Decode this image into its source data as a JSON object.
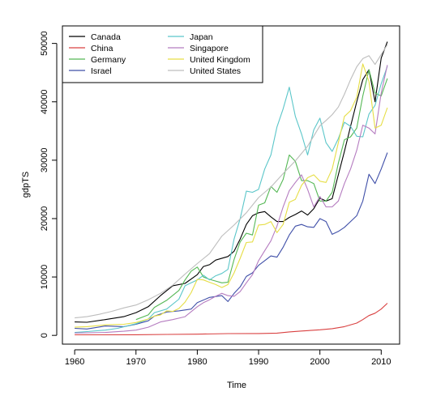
{
  "chart_data": {
    "type": "line",
    "title": "",
    "xlabel": "Time",
    "ylabel": "gdpTS",
    "xlim": [
      1958,
      2013
    ],
    "ylim": [
      -1500,
      53000
    ],
    "x_ticks": [
      1960,
      1970,
      1980,
      1990,
      2000,
      2010
    ],
    "y_ticks": [
      0,
      10000,
      20000,
      30000,
      40000,
      50000
    ],
    "grid": false,
    "legend_position": "top-left",
    "series": [
      {
        "name": "Canada",
        "color": "#000000",
        "points": [
          [
            1960,
            2300
          ],
          [
            1962,
            2250
          ],
          [
            1965,
            2700
          ],
          [
            1968,
            3200
          ],
          [
            1970,
            3900
          ],
          [
            1972,
            4900
          ],
          [
            1974,
            6800
          ],
          [
            1976,
            8500
          ],
          [
            1978,
            8900
          ],
          [
            1980,
            10400
          ],
          [
            1981,
            11800
          ],
          [
            1982,
            12100
          ],
          [
            1983,
            12900
          ],
          [
            1985,
            13500
          ],
          [
            1986,
            14400
          ],
          [
            1987,
            16500
          ],
          [
            1988,
            19000
          ],
          [
            1989,
            20500
          ],
          [
            1990,
            21000
          ],
          [
            1991,
            21200
          ],
          [
            1992,
            20300
          ],
          [
            1993,
            19500
          ],
          [
            1994,
            19500
          ],
          [
            1995,
            20200
          ],
          [
            1996,
            20700
          ],
          [
            1997,
            21300
          ],
          [
            1998,
            20600
          ],
          [
            1999,
            21700
          ],
          [
            2000,
            23500
          ],
          [
            2001,
            23000
          ],
          [
            2002,
            23400
          ],
          [
            2003,
            27500
          ],
          [
            2004,
            31500
          ],
          [
            2005,
            35800
          ],
          [
            2006,
            40000
          ],
          [
            2007,
            43800
          ],
          [
            2008,
            45500
          ],
          [
            2009,
            40000
          ],
          [
            2010,
            47500
          ],
          [
            2011,
            50300
          ]
        ]
      },
      {
        "name": "China",
        "color": "#d94040",
        "points": [
          [
            1960,
            100
          ],
          [
            1965,
            100
          ],
          [
            1970,
            110
          ],
          [
            1975,
            170
          ],
          [
            1980,
            200
          ],
          [
            1985,
            300
          ],
          [
            1990,
            320
          ],
          [
            1993,
            380
          ],
          [
            1995,
            600
          ],
          [
            1997,
            750
          ],
          [
            2000,
            950
          ],
          [
            2002,
            1150
          ],
          [
            2004,
            1500
          ],
          [
            2006,
            2100
          ],
          [
            2007,
            2700
          ],
          [
            2008,
            3400
          ],
          [
            2009,
            3800
          ],
          [
            2010,
            4500
          ],
          [
            2011,
            5500
          ]
        ]
      },
      {
        "name": "Germany",
        "color": "#55b855",
        "points": [
          [
            1970,
            2700
          ],
          [
            1972,
            3500
          ],
          [
            1973,
            4800
          ],
          [
            1975,
            6000
          ],
          [
            1977,
            7700
          ],
          [
            1978,
            9500
          ],
          [
            1979,
            11000
          ],
          [
            1980,
            11700
          ],
          [
            1981,
            10000
          ],
          [
            1982,
            9600
          ],
          [
            1983,
            9300
          ],
          [
            1984,
            9000
          ],
          [
            1985,
            9100
          ],
          [
            1986,
            13000
          ],
          [
            1987,
            16000
          ],
          [
            1988,
            17500
          ],
          [
            1989,
            17200
          ],
          [
            1990,
            22300
          ],
          [
            1991,
            22700
          ],
          [
            1992,
            25500
          ],
          [
            1993,
            24500
          ],
          [
            1994,
            26700
          ],
          [
            1995,
            30900
          ],
          [
            1996,
            29800
          ],
          [
            1997,
            26500
          ],
          [
            1998,
            26500
          ],
          [
            1999,
            26000
          ],
          [
            2000,
            23000
          ],
          [
            2001,
            23000
          ],
          [
            2002,
            24500
          ],
          [
            2003,
            29500
          ],
          [
            2004,
            33500
          ],
          [
            2005,
            34000
          ],
          [
            2006,
            35500
          ],
          [
            2007,
            41000
          ],
          [
            2008,
            45500
          ],
          [
            2009,
            41500
          ],
          [
            2010,
            41000
          ],
          [
            2011,
            44000
          ]
        ]
      },
      {
        "name": "Israel",
        "color": "#3f4fa8",
        "points": [
          [
            1960,
            1200
          ],
          [
            1962,
            1100
          ],
          [
            1965,
            1600
          ],
          [
            1968,
            1500
          ],
          [
            1970,
            1900
          ],
          [
            1972,
            2500
          ],
          [
            1973,
            3300
          ],
          [
            1975,
            4000
          ],
          [
            1977,
            4200
          ],
          [
            1979,
            4500
          ],
          [
            1980,
            5600
          ],
          [
            1982,
            6500
          ],
          [
            1984,
            6800
          ],
          [
            1985,
            5800
          ],
          [
            1986,
            7200
          ],
          [
            1987,
            8300
          ],
          [
            1988,
            10100
          ],
          [
            1989,
            10700
          ],
          [
            1990,
            12000
          ],
          [
            1991,
            12800
          ],
          [
            1992,
            13600
          ],
          [
            1993,
            13400
          ],
          [
            1994,
            15100
          ],
          [
            1995,
            17200
          ],
          [
            1996,
            18700
          ],
          [
            1997,
            19000
          ],
          [
            1998,
            18600
          ],
          [
            1999,
            18500
          ],
          [
            2000,
            20000
          ],
          [
            2001,
            19500
          ],
          [
            2002,
            17300
          ],
          [
            2003,
            17800
          ],
          [
            2004,
            18500
          ],
          [
            2005,
            19500
          ],
          [
            2006,
            20500
          ],
          [
            2007,
            23000
          ],
          [
            2008,
            27600
          ],
          [
            2009,
            26000
          ],
          [
            2010,
            28500
          ],
          [
            2011,
            31300
          ]
        ]
      },
      {
        "name": "Japan",
        "color": "#5bc6c9",
        "points": [
          [
            1960,
            500
          ],
          [
            1962,
            650
          ],
          [
            1965,
            900
          ],
          [
            1967,
            1200
          ],
          [
            1970,
            2000
          ],
          [
            1972,
            2800
          ],
          [
            1973,
            3900
          ],
          [
            1975,
            4500
          ],
          [
            1977,
            6200
          ],
          [
            1978,
            8500
          ],
          [
            1979,
            9000
          ],
          [
            1980,
            9500
          ],
          [
            1981,
            10300
          ],
          [
            1982,
            9500
          ],
          [
            1983,
            10200
          ],
          [
            1984,
            10600
          ],
          [
            1985,
            11300
          ],
          [
            1986,
            16500
          ],
          [
            1987,
            20000
          ],
          [
            1988,
            24700
          ],
          [
            1989,
            24500
          ],
          [
            1990,
            25000
          ],
          [
            1991,
            28500
          ],
          [
            1992,
            30900
          ],
          [
            1993,
            35700
          ],
          [
            1994,
            38800
          ],
          [
            1995,
            42500
          ],
          [
            1996,
            37500
          ],
          [
            1997,
            34500
          ],
          [
            1998,
            30900
          ],
          [
            1999,
            35200
          ],
          [
            2000,
            37200
          ],
          [
            2001,
            33000
          ],
          [
            2002,
            31500
          ],
          [
            2003,
            33700
          ],
          [
            2004,
            36500
          ],
          [
            2005,
            35800
          ],
          [
            2006,
            34100
          ],
          [
            2007,
            34000
          ],
          [
            2008,
            37900
          ],
          [
            2009,
            39400
          ],
          [
            2010,
            43100
          ],
          [
            2011,
            46100
          ]
        ]
      },
      {
        "name": "Singapore",
        "color": "#b57cc0",
        "points": [
          [
            1960,
            400
          ],
          [
            1965,
            500
          ],
          [
            1968,
            700
          ],
          [
            1970,
            900
          ],
          [
            1972,
            1400
          ],
          [
            1974,
            2300
          ],
          [
            1976,
            2700
          ],
          [
            1978,
            3200
          ],
          [
            1980,
            4900
          ],
          [
            1981,
            5600
          ],
          [
            1982,
            6100
          ],
          [
            1983,
            6700
          ],
          [
            1984,
            7200
          ],
          [
            1985,
            6800
          ],
          [
            1986,
            6700
          ],
          [
            1987,
            7500
          ],
          [
            1988,
            9000
          ],
          [
            1989,
            10400
          ],
          [
            1990,
            12800
          ],
          [
            1991,
            14500
          ],
          [
            1992,
            16200
          ],
          [
            1993,
            18700
          ],
          [
            1994,
            22000
          ],
          [
            1995,
            24800
          ],
          [
            1996,
            26200
          ],
          [
            1997,
            27500
          ],
          [
            1998,
            25000
          ],
          [
            1999,
            22000
          ],
          [
            2000,
            23800
          ],
          [
            2001,
            22000
          ],
          [
            2002,
            22000
          ],
          [
            2003,
            23000
          ],
          [
            2004,
            26000
          ],
          [
            2005,
            28500
          ],
          [
            2006,
            31700
          ],
          [
            2007,
            36000
          ],
          [
            2008,
            35500
          ],
          [
            2009,
            34500
          ],
          [
            2010,
            41500
          ],
          [
            2011,
            46300
          ]
        ]
      },
      {
        "name": "United Kingdom",
        "color": "#e6de46",
        "points": [
          [
            1960,
            1400
          ],
          [
            1962,
            1500
          ],
          [
            1965,
            1800
          ],
          [
            1968,
            1900
          ],
          [
            1970,
            2200
          ],
          [
            1972,
            2800
          ],
          [
            1973,
            3300
          ],
          [
            1974,
            3500
          ],
          [
            1975,
            4200
          ],
          [
            1976,
            4100
          ],
          [
            1977,
            4600
          ],
          [
            1978,
            5700
          ],
          [
            1979,
            7300
          ],
          [
            1980,
            9600
          ],
          [
            1981,
            9500
          ],
          [
            1982,
            9100
          ],
          [
            1983,
            8700
          ],
          [
            1984,
            8200
          ],
          [
            1985,
            8700
          ],
          [
            1986,
            10700
          ],
          [
            1987,
            13200
          ],
          [
            1988,
            15900
          ],
          [
            1989,
            16000
          ],
          [
            1990,
            18900
          ],
          [
            1991,
            19000
          ],
          [
            1992,
            19500
          ],
          [
            1993,
            17600
          ],
          [
            1994,
            19000
          ],
          [
            1995,
            22800
          ],
          [
            1996,
            23300
          ],
          [
            1997,
            25700
          ],
          [
            1998,
            27000
          ],
          [
            1999,
            27500
          ],
          [
            2000,
            26400
          ],
          [
            2001,
            26200
          ],
          [
            2002,
            28500
          ],
          [
            2003,
            33000
          ],
          [
            2004,
            37500
          ],
          [
            2005,
            38500
          ],
          [
            2006,
            40800
          ],
          [
            2007,
            46500
          ],
          [
            2008,
            43500
          ],
          [
            2009,
            35500
          ],
          [
            2010,
            36000
          ],
          [
            2011,
            39000
          ]
        ]
      },
      {
        "name": "United States",
        "color": "#bdbdbd",
        "points": [
          [
            1960,
            3000
          ],
          [
            1962,
            3200
          ],
          [
            1964,
            3600
          ],
          [
            1966,
            4100
          ],
          [
            1968,
            4700
          ],
          [
            1970,
            5200
          ],
          [
            1972,
            6100
          ],
          [
            1974,
            7200
          ],
          [
            1976,
            8600
          ],
          [
            1978,
            10500
          ],
          [
            1980,
            12300
          ],
          [
            1982,
            14000
          ],
          [
            1984,
            17000
          ],
          [
            1986,
            18900
          ],
          [
            1988,
            21000
          ],
          [
            1990,
            23600
          ],
          [
            1992,
            25400
          ],
          [
            1994,
            27700
          ],
          [
            1996,
            29900
          ],
          [
            1998,
            32400
          ],
          [
            2000,
            35900
          ],
          [
            2001,
            36800
          ],
          [
            2002,
            37800
          ],
          [
            2003,
            39100
          ],
          [
            2004,
            41300
          ],
          [
            2005,
            43800
          ],
          [
            2006,
            46000
          ],
          [
            2007,
            47400
          ],
          [
            2008,
            47900
          ],
          [
            2009,
            46400
          ],
          [
            2010,
            48100
          ],
          [
            2011,
            49800
          ]
        ]
      }
    ]
  }
}
